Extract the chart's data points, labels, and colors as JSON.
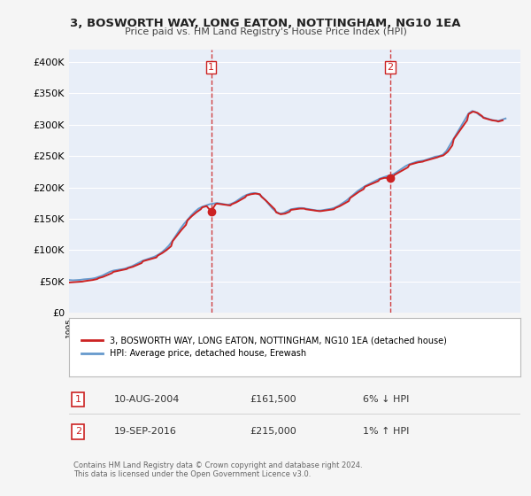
{
  "title": "3, BOSWORTH WAY, LONG EATON, NOTTINGHAM, NG10 1EA",
  "subtitle": "Price paid vs. HM Land Registry's House Price Index (HPI)",
  "ylabel_ticks": [
    "£0",
    "£50K",
    "£100K",
    "£150K",
    "£200K",
    "£250K",
    "£300K",
    "£350K",
    "£400K"
  ],
  "ytick_values": [
    0,
    50000,
    100000,
    150000,
    200000,
    250000,
    300000,
    350000,
    400000
  ],
  "ylim": [
    0,
    420000
  ],
  "xlim_start": 1995.0,
  "xlim_end": 2025.5,
  "hpi_color": "#6699cc",
  "price_color": "#cc2222",
  "dashed_line_color": "#cc2222",
  "background_color": "#f0f4ff",
  "plot_bg_color": "#e8eef8",
  "legend_label_price": "3, BOSWORTH WAY, LONG EATON, NOTTINGHAM, NG10 1EA (detached house)",
  "legend_label_hpi": "HPI: Average price, detached house, Erewash",
  "sale1_year": 2004.6,
  "sale1_price": 161500,
  "sale1_label": "1",
  "sale2_year": 2016.72,
  "sale2_price": 215000,
  "sale2_label": "2",
  "table_rows": [
    {
      "num": "1",
      "date": "10-AUG-2004",
      "price": "£161,500",
      "note": "6% ↓ HPI"
    },
    {
      "num": "2",
      "date": "19-SEP-2016",
      "price": "£215,000",
      "note": "1% ↑ HPI"
    }
  ],
  "footer": "Contains HM Land Registry data © Crown copyright and database right 2024.\nThis data is licensed under the Open Government Licence v3.0.",
  "hpi_data": {
    "years": [
      1995,
      1995.25,
      1995.5,
      1995.75,
      1996,
      1996.25,
      1996.5,
      1996.75,
      1997,
      1997.25,
      1997.5,
      1997.75,
      1998,
      1998.25,
      1998.5,
      1998.75,
      1999,
      1999.25,
      1999.5,
      1999.75,
      2000,
      2000.25,
      2000.5,
      2000.75,
      2001,
      2001.25,
      2001.5,
      2001.75,
      2002,
      2002.25,
      2002.5,
      2002.75,
      2003,
      2003.25,
      2003.5,
      2003.75,
      2004,
      2004.25,
      2004.5,
      2004.75,
      2005,
      2005.25,
      2005.5,
      2005.75,
      2006,
      2006.25,
      2006.5,
      2006.75,
      2007,
      2007.25,
      2007.5,
      2007.75,
      2008,
      2008.25,
      2008.5,
      2008.75,
      2009,
      2009.25,
      2009.5,
      2009.75,
      2010,
      2010.25,
      2010.5,
      2010.75,
      2011,
      2011.25,
      2011.5,
      2011.75,
      2012,
      2012.25,
      2012.5,
      2012.75,
      2013,
      2013.25,
      2013.5,
      2013.75,
      2014,
      2014.25,
      2014.5,
      2014.75,
      2015,
      2015.25,
      2015.5,
      2015.75,
      2016,
      2016.25,
      2016.5,
      2016.75,
      2017,
      2017.25,
      2017.5,
      2017.75,
      2018,
      2018.25,
      2018.5,
      2018.75,
      2019,
      2019.25,
      2019.5,
      2019.75,
      2020,
      2020.25,
      2020.5,
      2020.75,
      2021,
      2021.25,
      2021.5,
      2021.75,
      2022,
      2022.25,
      2022.5,
      2022.75,
      2023,
      2023.25,
      2023.5,
      2023.75,
      2024,
      2024.25,
      2024.5
    ],
    "values": [
      52000,
      51500,
      51800,
      52200,
      53000,
      53500,
      54000,
      55000,
      57000,
      59000,
      62000,
      65000,
      67000,
      68000,
      69000,
      70000,
      72000,
      74000,
      77000,
      80000,
      83000,
      85000,
      87000,
      89000,
      92000,
      96000,
      101000,
      107000,
      115000,
      124000,
      133000,
      141000,
      148000,
      155000,
      161000,
      166000,
      169000,
      171000,
      173000,
      174000,
      175000,
      174000,
      173000,
      172000,
      174000,
      177000,
      181000,
      185000,
      188000,
      190000,
      191000,
      190000,
      186000,
      180000,
      173000,
      166000,
      161000,
      158000,
      159000,
      162000,
      165000,
      166000,
      167000,
      167000,
      166000,
      165000,
      164000,
      163000,
      163000,
      164000,
      165000,
      166000,
      168000,
      171000,
      175000,
      179000,
      184000,
      189000,
      194000,
      198000,
      202000,
      205000,
      208000,
      211000,
      214000,
      216000,
      218000,
      219000,
      222000,
      226000,
      230000,
      234000,
      237000,
      239000,
      241000,
      242000,
      243000,
      245000,
      247000,
      249000,
      250000,
      252000,
      258000,
      268000,
      278000,
      288000,
      298000,
      308000,
      318000,
      322000,
      320000,
      315000,
      312000,
      310000,
      308000,
      307000,
      306000,
      308000,
      310000
    ]
  },
  "price_data": {
    "years": [
      1995,
      1995.3,
      1995.6,
      1995.9,
      1996,
      1996.3,
      1996.6,
      1996.9,
      1997,
      1997.3,
      1997.6,
      1997.9,
      1998,
      1998.3,
      1998.6,
      1998.9,
      1999,
      1999.3,
      1999.6,
      1999.9,
      2000,
      2000.3,
      2000.6,
      2000.9,
      2001,
      2001.3,
      2001.6,
      2001.9,
      2002,
      2002.3,
      2002.6,
      2002.9,
      2003,
      2003.3,
      2003.6,
      2003.9,
      2004,
      2004.3,
      2004.6,
      2004.9,
      2005,
      2005.3,
      2005.6,
      2005.9,
      2006,
      2006.3,
      2006.6,
      2006.9,
      2007,
      2007.3,
      2007.6,
      2007.9,
      2008,
      2008.3,
      2008.6,
      2008.9,
      2009,
      2009.3,
      2009.6,
      2009.9,
      2010,
      2010.3,
      2010.6,
      2010.9,
      2011,
      2011.3,
      2011.6,
      2011.9,
      2012,
      2012.3,
      2012.6,
      2012.9,
      2013,
      2013.3,
      2013.6,
      2013.9,
      2014,
      2014.3,
      2014.6,
      2014.9,
      2015,
      2015.3,
      2015.6,
      2015.9,
      2016,
      2016.3,
      2016.6,
      2016.9,
      2017,
      2017.3,
      2017.6,
      2017.9,
      2018,
      2018.3,
      2018.6,
      2018.9,
      2019,
      2019.3,
      2019.6,
      2019.9,
      2020,
      2020.3,
      2020.6,
      2020.9,
      2021,
      2021.3,
      2021.6,
      2021.9,
      2022,
      2022.3,
      2022.6,
      2022.9,
      2023,
      2023.3,
      2023.6,
      2023.9,
      2024,
      2024.3
    ],
    "values": [
      48000,
      48500,
      49000,
      49500,
      50000,
      51000,
      52000,
      53500,
      55000,
      57000,
      60000,
      63000,
      65000,
      66500,
      68000,
      69500,
      71000,
      73000,
      76000,
      79000,
      82000,
      84000,
      86000,
      88000,
      91000,
      95000,
      100000,
      106000,
      114000,
      123000,
      132000,
      140000,
      147000,
      154000,
      160000,
      165000,
      168000,
      170000,
      161500,
      173000,
      174000,
      173000,
      172000,
      171000,
      173000,
      176000,
      180000,
      184000,
      187000,
      189000,
      190000,
      189000,
      185000,
      179000,
      172000,
      165000,
      160000,
      157000,
      158000,
      161000,
      164000,
      165000,
      166000,
      166000,
      165000,
      164000,
      163000,
      162000,
      162000,
      163000,
      164000,
      165000,
      167000,
      170000,
      174000,
      178000,
      183000,
      188000,
      193000,
      197000,
      201000,
      204000,
      207000,
      210000,
      213000,
      215000,
      215000,
      217000,
      220000,
      224000,
      228000,
      232000,
      236000,
      238000,
      240000,
      241000,
      242000,
      244000,
      246000,
      248000,
      249000,
      251000,
      257000,
      267000,
      277000,
      287000,
      297000,
      307000,
      317000,
      321000,
      319000,
      314000,
      311000,
      309000,
      307000,
      306000,
      305000,
      307000
    ]
  }
}
